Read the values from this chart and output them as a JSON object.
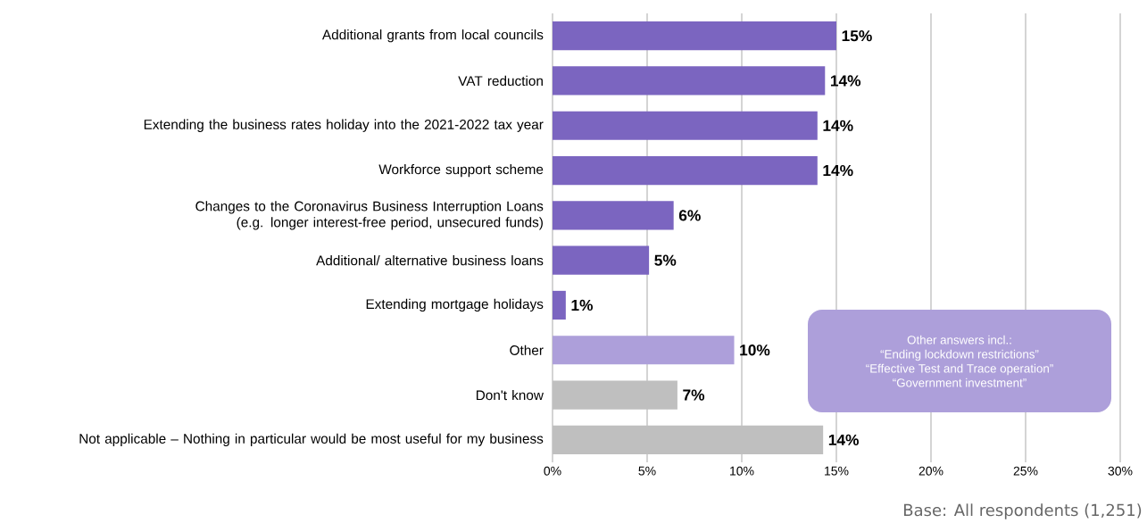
{
  "chart_data": {
    "type": "bar",
    "orientation": "horizontal",
    "categories": [
      "Additional grants from local councils",
      "VAT reduction",
      "Extending the business rates holiday into the 2021-2022 tax year",
      "Workforce support scheme",
      "Changes to the Coronavirus Business Interruption Loans (e.g. longer interest-free period, unsecured funds)",
      "Additional/ alternative business loans",
      "Extending mortgage holidays",
      "Other",
      "Don't know",
      "Not applicable – Nothing in particular would be most useful for my business"
    ],
    "values": [
      15.0,
      14.4,
      14.0,
      14.0,
      6.4,
      5.1,
      0.7,
      9.6,
      6.6,
      14.3
    ],
    "colors": [
      "#7b65c0",
      "#7b65c0",
      "#7b65c0",
      "#7b65c0",
      "#7b65c0",
      "#7b65c0",
      "#7b65c0",
      "#ad9fda",
      "#bfbfbf",
      "#bfbfbf"
    ],
    "value_labels": [
      "15%",
      "14%",
      "14%",
      "14%",
      "6%",
      "5%",
      "1%",
      "10%",
      "7%",
      "14%"
    ],
    "xlim": [
      0,
      30
    ],
    "xticks": [
      {
        "value": 0,
        "label": "0%"
      },
      {
        "value": 5,
        "label": "5%"
      },
      {
        "value": 10,
        "label": "10%"
      },
      {
        "value": 15,
        "label": "15%"
      },
      {
        "value": 20,
        "label": "20%"
      },
      {
        "value": 25,
        "label": "25%"
      },
      {
        "value": 30,
        "label": "30%"
      }
    ],
    "grid": "x",
    "annotations": [
      "Other answers incl.:",
      "“Ending lockdown restrictions”",
      "“Effective Test and Trace operation”",
      "“Government investment”",
      "Base: All respondents (1,251)"
    ]
  }
}
